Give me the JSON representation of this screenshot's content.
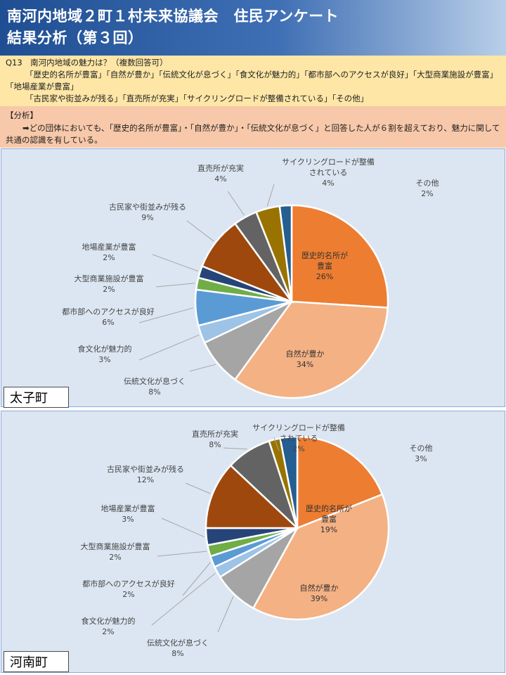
{
  "header": {
    "title_line1": "南河内地域２町１村未来協議会　住民アンケート",
    "title_line2": "結果分析（第３回）"
  },
  "question": {
    "text": "Q13　南河内地域の魅力は？（複数回答可）",
    "options_line1": "「歴史的名所が豊富」「自然が豊か」「伝統文化が息づく」「食文化が魅力的」「都市部へのアクセスが良好」「大型商業施設が豊富」「地場産業が豊富」",
    "options_line2": "「古民家や街並みが残る」「直売所が充実」「サイクリングロードが整備されている」「その他」"
  },
  "analysis": {
    "heading": "【分析】",
    "body": "➡どの団体においても、「歴史的名所が豊富」・「自然が豊か」・「伝統文化が息づく」と回答した人が６割を超えており、魅力に関して共通の認識を有している。"
  },
  "colors": [
    "#ed7d31",
    "#f4b183",
    "#a5a5a5",
    "#9dc3e6",
    "#5b9bd5",
    "#70ad47",
    "#264478",
    "#9e480e",
    "#636363",
    "#997300",
    "#255e91"
  ],
  "chart_data": [
    {
      "type": "pie",
      "town": "太子町",
      "categories": [
        "歴史的名所が豊富",
        "自然が豊か",
        "伝統文化が息づく",
        "食文化が魅力的",
        "都市部へのアクセスが良好",
        "大型商業施設が豊富",
        "地場産業が豊富",
        "古民家や街並みが残る",
        "直売所が充実",
        "サイクリングロードが整備されている",
        "その他"
      ],
      "labels": [
        [
          "歴史的名所が",
          "豊富"
        ],
        [
          "自然が豊か"
        ],
        [
          "伝統文化が息づく"
        ],
        [
          "食文化が魅力的"
        ],
        [
          "都市部へのアクセスが良好"
        ],
        [
          "大型商業施設が豊富"
        ],
        [
          "地場産業が豊富"
        ],
        [
          "古民家や街並みが残る"
        ],
        [
          "直売所が充実"
        ],
        [
          "サイクリングロードが整備",
          "されている"
        ],
        [
          "その他"
        ]
      ],
      "percent_labels": [
        "26%",
        "34%",
        "8%",
        "3%",
        "6%",
        "2%",
        "2%",
        "9%",
        "4%",
        "4%",
        "2%"
      ],
      "values": [
        26,
        34,
        8,
        3,
        6,
        2,
        2,
        9,
        4,
        4,
        2
      ]
    },
    {
      "type": "pie",
      "town": "河南町",
      "categories": [
        "歴史的名所が豊富",
        "自然が豊か",
        "伝統文化が息づく",
        "食文化が魅力的",
        "都市部へのアクセスが良好",
        "大型商業施設が豊富",
        "地場産業が豊富",
        "古民家や街並みが残る",
        "直売所が充実",
        "サイクリングロードが整備されている",
        "その他"
      ],
      "labels": [
        [
          "歴史的名所が",
          "豊富"
        ],
        [
          "自然が豊か"
        ],
        [
          "伝統文化が息づく"
        ],
        [
          "食文化が魅力的"
        ],
        [
          "都市部へのアクセスが良好"
        ],
        [
          "大型商業施設が豊富"
        ],
        [
          "地場産業が豊富"
        ],
        [
          "古民家や街並みが残る"
        ],
        [
          "直売所が充実"
        ],
        [
          "サイクリングロードが整備",
          "されている"
        ],
        [
          "その他"
        ]
      ],
      "percent_labels": [
        "19%",
        "39%",
        "8%",
        "2%",
        "2%",
        "2%",
        "3%",
        "12%",
        "8%",
        "2%",
        "3%"
      ],
      "values": [
        19,
        39,
        8,
        2,
        2,
        2,
        3,
        12,
        8,
        2,
        3
      ]
    }
  ]
}
